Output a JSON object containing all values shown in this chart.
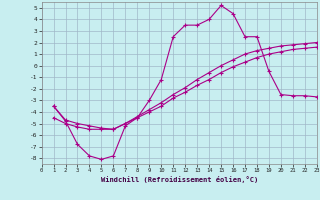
{
  "xlabel": "Windchill (Refroidissement éolien,°C)",
  "xlim": [
    0,
    23
  ],
  "ylim": [
    -8.5,
    5.5
  ],
  "xticks": [
    0,
    1,
    2,
    3,
    4,
    5,
    6,
    7,
    8,
    9,
    10,
    11,
    12,
    13,
    14,
    15,
    16,
    17,
    18,
    19,
    20,
    21,
    22,
    23
  ],
  "yticks": [
    5,
    4,
    3,
    2,
    1,
    0,
    -1,
    -2,
    -3,
    -4,
    -5,
    -6,
    -7,
    -8
  ],
  "background_color": "#c8eef0",
  "grid_color": "#a0b8c8",
  "line_color": "#aa0088",
  "line1_x": [
    1,
    2,
    3,
    4,
    5,
    6,
    7,
    8,
    9,
    10,
    11,
    12,
    13,
    14,
    15,
    16,
    17,
    18,
    19,
    20,
    21,
    22,
    23
  ],
  "line1_y": [
    -3.5,
    -4.8,
    -6.8,
    -7.8,
    -8.1,
    -7.8,
    -5.2,
    -4.5,
    -3.0,
    -1.2,
    2.5,
    3.5,
    3.5,
    4.0,
    5.2,
    4.5,
    2.5,
    2.5,
    -0.5,
    -2.5,
    -2.6,
    -2.6,
    -2.7
  ],
  "line2_x": [
    1,
    2,
    3,
    4,
    5,
    6,
    7,
    8,
    9,
    10,
    11,
    12,
    13,
    14,
    15,
    16,
    17,
    18,
    19,
    20,
    21,
    22,
    23
  ],
  "line2_y": [
    -4.5,
    -5.0,
    -5.3,
    -5.5,
    -5.5,
    -5.5,
    -5.0,
    -4.5,
    -4.0,
    -3.5,
    -2.8,
    -2.3,
    -1.7,
    -1.2,
    -0.6,
    -0.1,
    0.3,
    0.7,
    1.0,
    1.2,
    1.4,
    1.5,
    1.6
  ],
  "line3_x": [
    1,
    2,
    3,
    4,
    5,
    6,
    7,
    8,
    9,
    10,
    11,
    12,
    13,
    14,
    15,
    16,
    17,
    18,
    19,
    20,
    21,
    22,
    23
  ],
  "line3_y": [
    -3.5,
    -4.7,
    -5.0,
    -5.2,
    -5.4,
    -5.5,
    -5.0,
    -4.4,
    -3.8,
    -3.2,
    -2.5,
    -1.9,
    -1.2,
    -0.6,
    0.0,
    0.5,
    1.0,
    1.3,
    1.5,
    1.7,
    1.8,
    1.9,
    2.0
  ]
}
